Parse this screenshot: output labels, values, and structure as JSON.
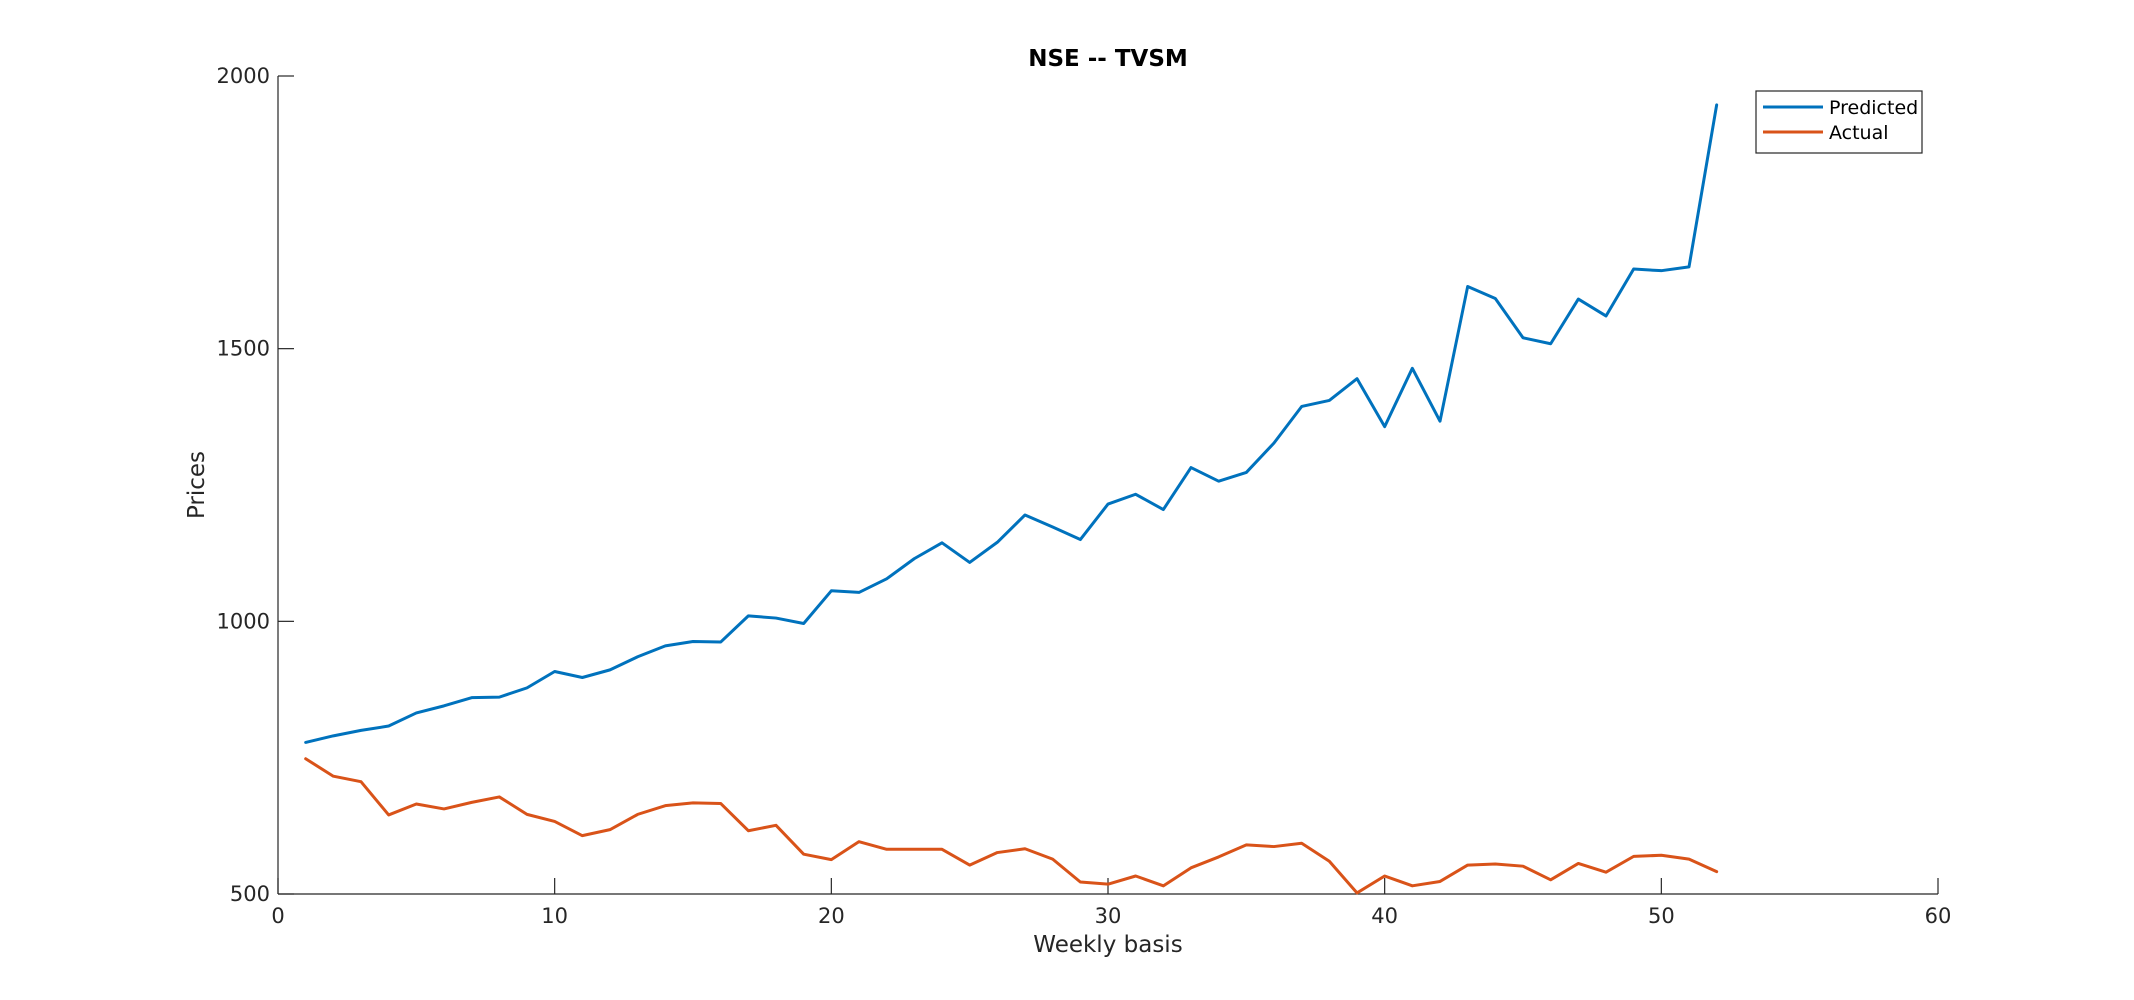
{
  "chart_data": {
    "type": "line",
    "title": "NSE -- TVSM",
    "xlabel": "Weekly basis",
    "ylabel": "Prices",
    "xlim": [
      0,
      60
    ],
    "ylim": [
      500,
      2000
    ],
    "xticks": [
      0,
      10,
      20,
      30,
      40,
      50,
      60
    ],
    "yticks": [
      500,
      1000,
      1500,
      2000
    ],
    "grid": false,
    "legend_position": "top-right",
    "x": [
      1,
      2,
      3,
      4,
      5,
      6,
      7,
      8,
      9,
      10,
      11,
      12,
      13,
      14,
      15,
      16,
      17,
      18,
      19,
      20,
      21,
      22,
      23,
      24,
      25,
      26,
      27,
      28,
      29,
      30,
      31,
      32,
      33,
      34,
      35,
      36,
      37,
      38,
      39,
      40,
      41,
      42,
      43,
      44,
      45,
      46,
      47,
      48,
      49,
      50,
      51,
      52
    ],
    "series": [
      {
        "name": "Predicted",
        "color": "#0072BD",
        "values": [
          778,
          790,
          800,
          808,
          832,
          845,
          860,
          861,
          878,
          908,
          897,
          911,
          935,
          955,
          963,
          962,
          1010,
          1006,
          996,
          1056,
          1053,
          1078,
          1115,
          1144,
          1108,
          1145,
          1195,
          1173,
          1150,
          1215,
          1233,
          1205,
          1282,
          1257,
          1273,
          1327,
          1394,
          1405,
          1445,
          1357,
          1464,
          1367,
          1614,
          1592,
          1520,
          1509,
          1591,
          1560,
          1646,
          1643,
          1650,
          1947
        ]
      },
      {
        "name": "Actual",
        "color": "#D95319",
        "values": [
          748,
          716,
          706,
          645,
          665,
          656,
          668,
          678,
          646,
          633,
          607,
          618,
          646,
          662,
          667,
          666,
          616,
          626,
          573,
          563,
          596,
          582,
          582,
          582,
          553,
          576,
          583,
          564,
          522,
          518,
          533,
          515,
          548,
          568,
          590,
          587,
          593,
          560,
          502,
          533,
          515,
          523,
          553,
          555,
          551,
          526,
          556,
          540,
          569,
          571,
          564,
          541
        ]
      }
    ]
  }
}
